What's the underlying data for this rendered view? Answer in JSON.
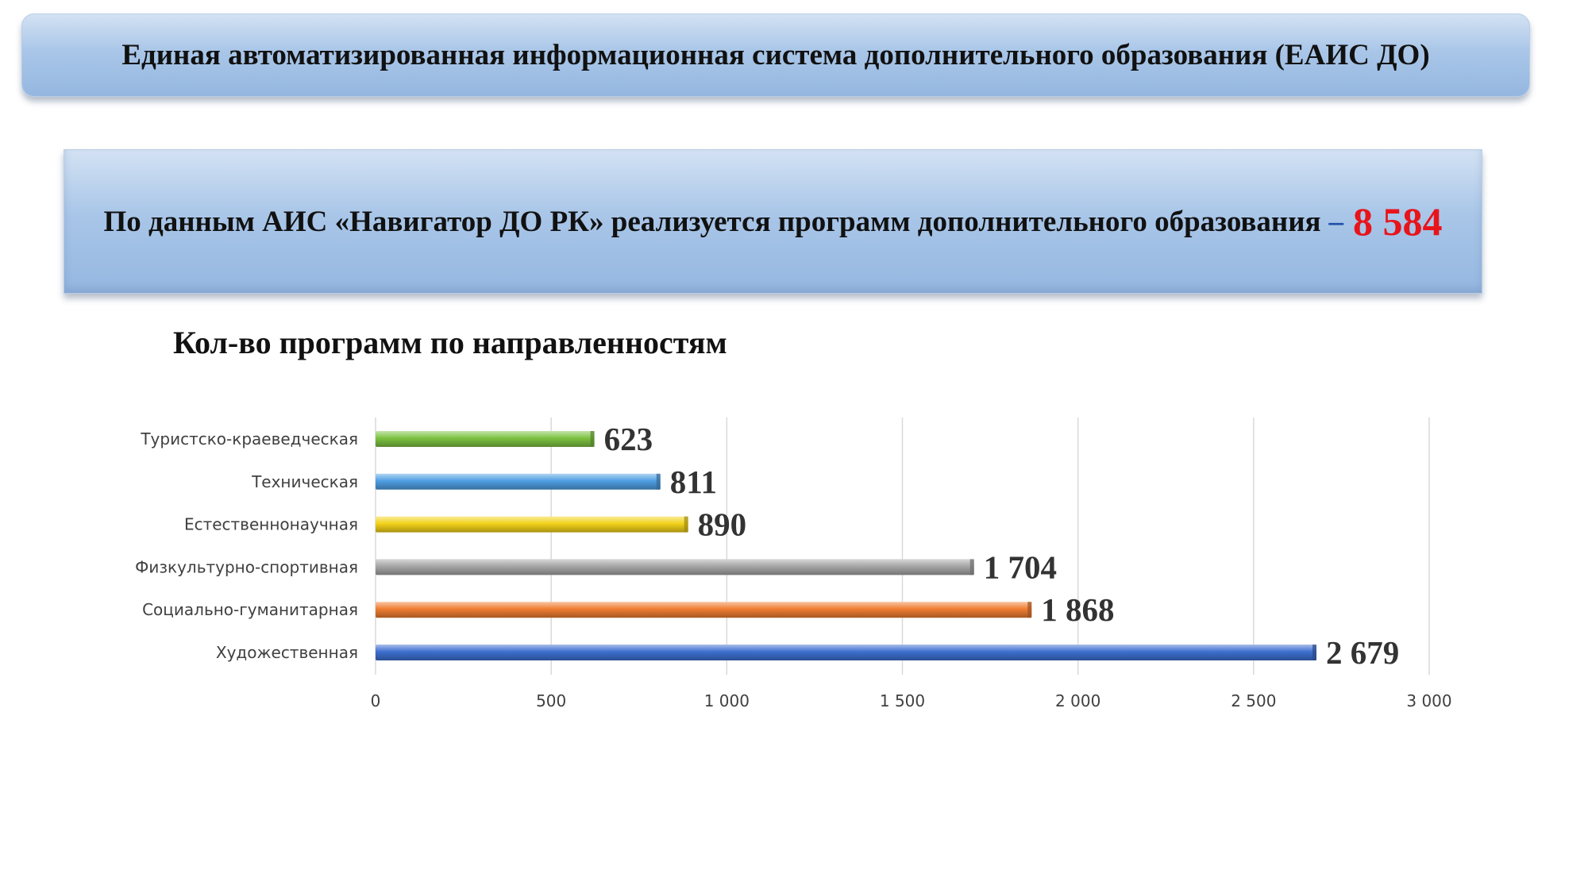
{
  "header": {
    "title": "Единая автоматизированная информационная система дополнительного образования (ЕАИС ДО)"
  },
  "info": {
    "text": "По данным АИС «Навигатор ДО РК» реализуется программ дополнительного образования",
    "dash": "–",
    "total": "8 584"
  },
  "chart_data": {
    "type": "bar",
    "orientation": "horizontal",
    "title": "Кол-во программ по направленностям",
    "categories": [
      "Туристско-краеведческая",
      "Техническая",
      "Естественнонаучная",
      "Физкультурно-спортивная",
      "Социально-гуманитарная",
      "Художественная"
    ],
    "values": [
      623,
      811,
      890,
      1704,
      1868,
      2679
    ],
    "value_labels": [
      "623",
      "811",
      "890",
      "1 704",
      "1 868",
      "2 679"
    ],
    "colors": [
      "#7cc241",
      "#4f9fe3",
      "#f2d21a",
      "#a6a6a6",
      "#ef7d32",
      "#3e6fd0"
    ],
    "xlim": [
      0,
      3000
    ],
    "ticks": [
      0,
      500,
      1000,
      1500,
      2000,
      2500,
      3000
    ],
    "tick_labels": [
      "0",
      "500",
      "1 000",
      "1 500",
      "2 000",
      "2 500",
      "3 000"
    ],
    "grid": true,
    "legend": false
  }
}
